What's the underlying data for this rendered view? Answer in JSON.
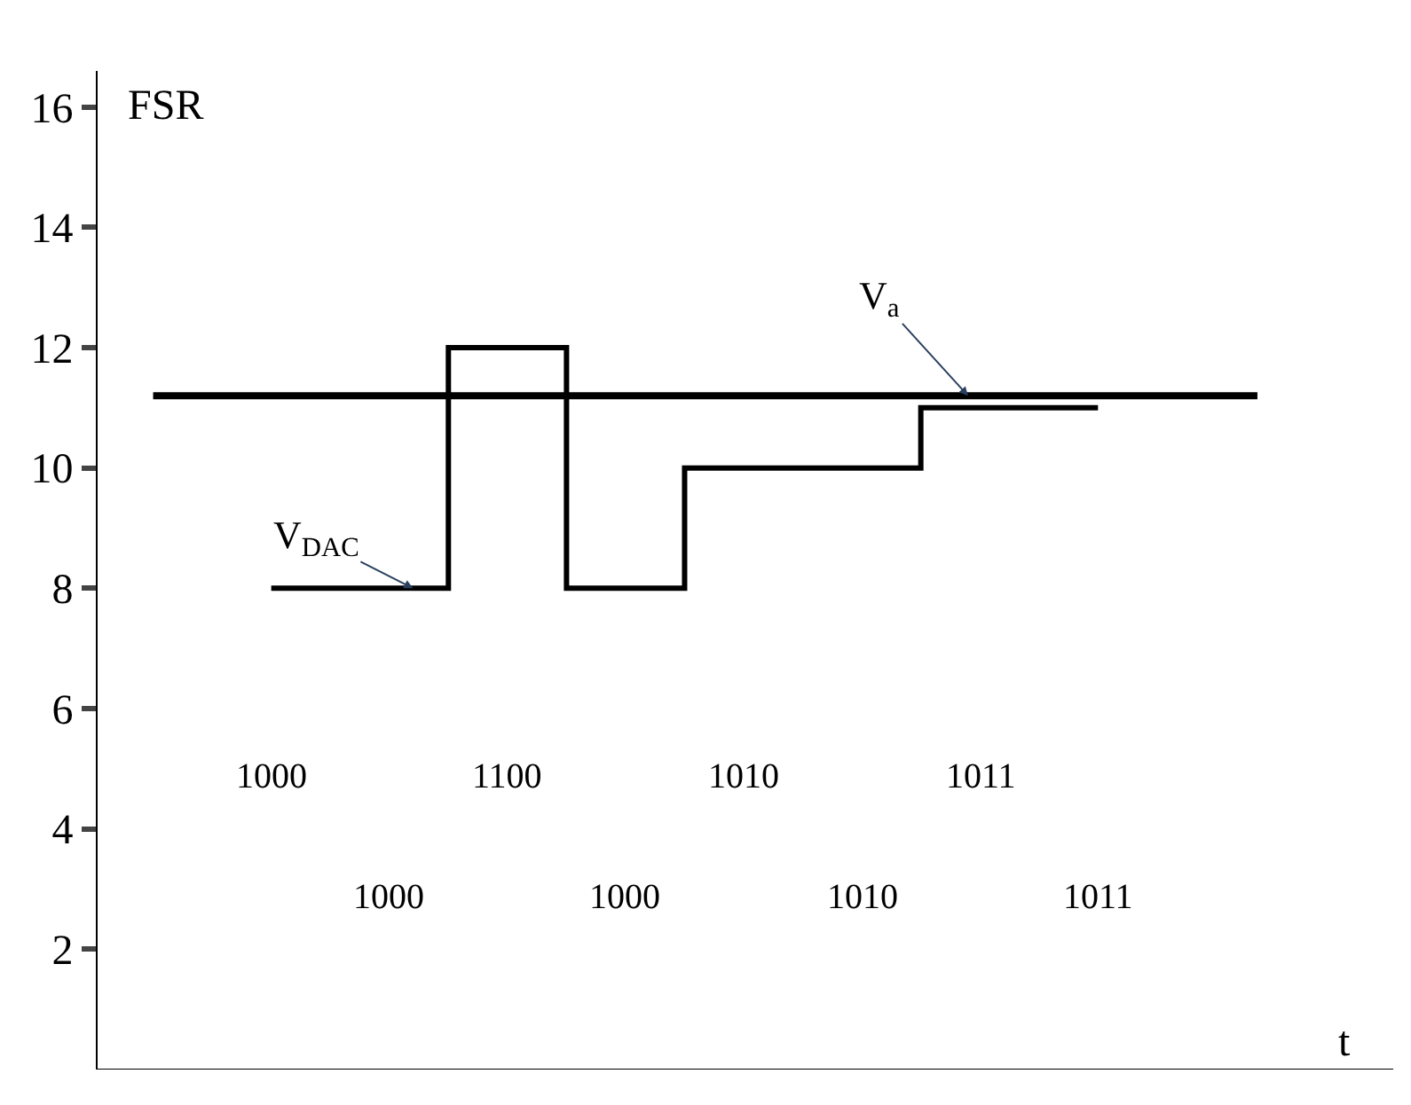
{
  "chart_data": {
    "type": "step",
    "xlabel": "t",
    "ylabel": "FSR",
    "categories": [
      null,
      null,
      null,
      null,
      null,
      null,
      null,
      null
    ],
    "series": [
      {
        "name": "V$_{DAC}$",
        "color": "#000000",
        "values": [
          8,
          8,
          12,
          8,
          10,
          10,
          11,
          11
        ]
      }
    ],
    "ylim": [
      0,
      16.6
    ],
    "yticks": [
      2,
      4,
      6,
      8,
      10,
      12,
      14,
      16
    ],
    "ref_lines": [
      {
        "axis": "y",
        "value": 11.2,
        "label": "V$_{a}$",
        "color": "#000000"
      }
    ],
    "annotations": [
      "1000",
      "1000",
      "1100",
      "1000",
      "1010",
      "1010",
      "1011",
      "1011"
    ],
    "legend": false
  }
}
